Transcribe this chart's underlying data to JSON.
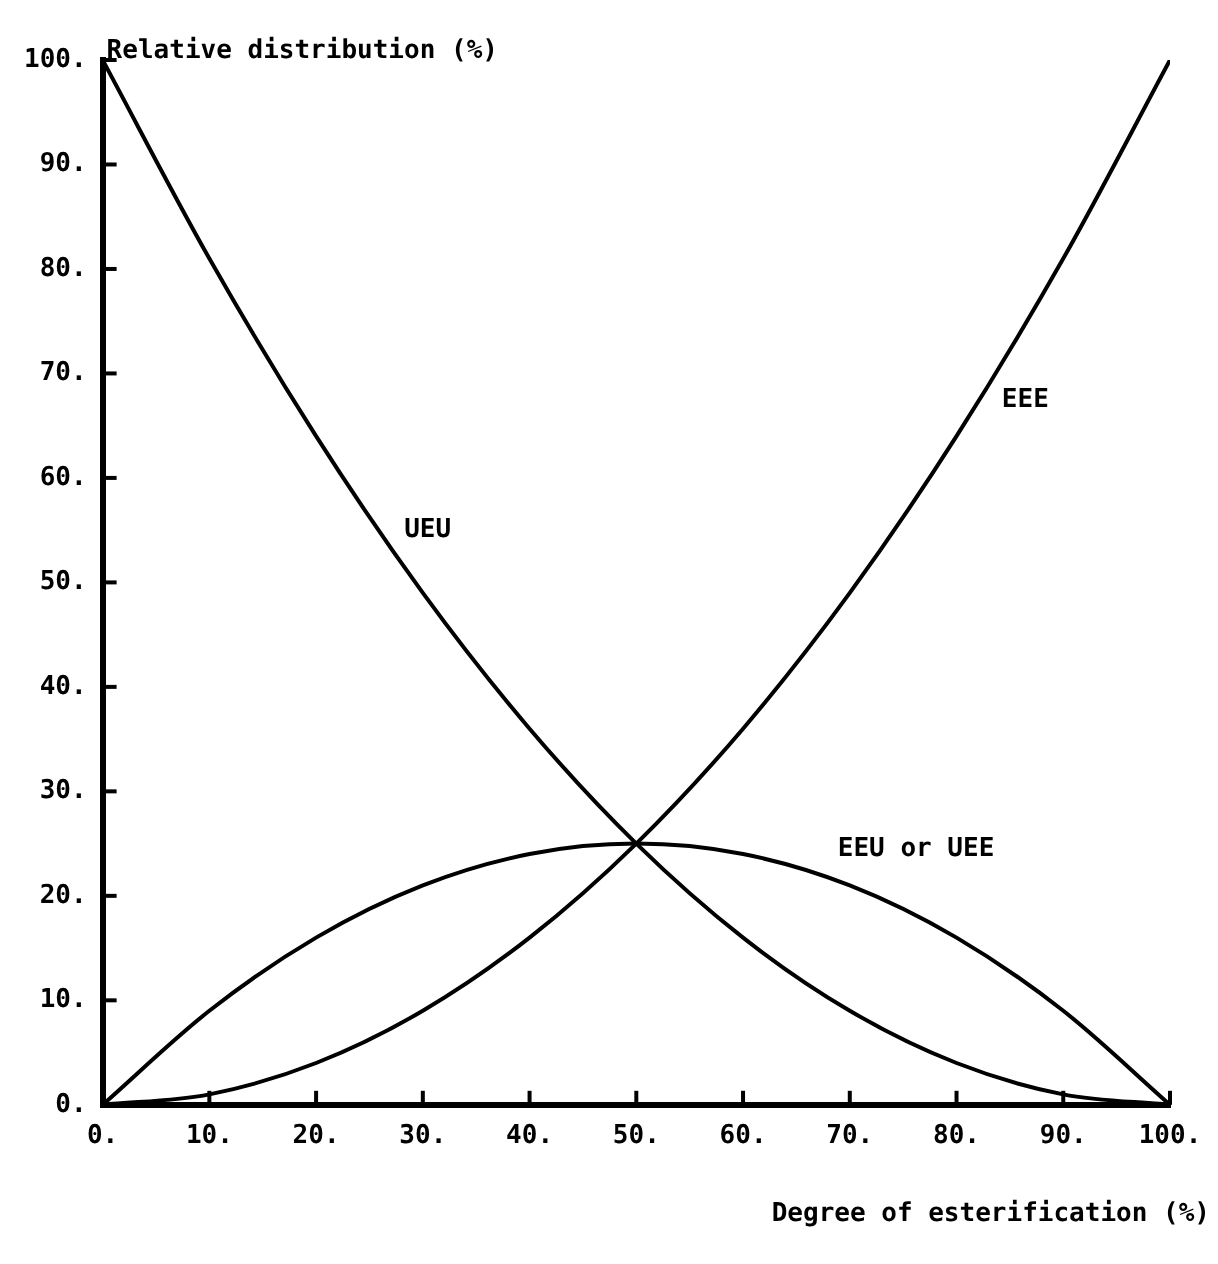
{
  "chart_data": {
    "type": "line",
    "xlabel": "Degree of esterification (%)",
    "ylabel": "Relative distribution (%)",
    "x": [
      0,
      10,
      20,
      30,
      40,
      50,
      60,
      70,
      80,
      90,
      100
    ],
    "series": [
      {
        "name": "UEU",
        "color": "#000000",
        "values": [
          100,
          81,
          64,
          49,
          36,
          25,
          16,
          9,
          4,
          1,
          0
        ]
      },
      {
        "name": "EEE",
        "color": "#000000",
        "values": [
          0,
          1,
          4,
          9,
          16,
          25,
          36,
          49,
          64,
          81,
          100
        ]
      },
      {
        "name": "EEU or UEE",
        "color": "#000000",
        "values": [
          0,
          9,
          16,
          21,
          24,
          25,
          24,
          21,
          16,
          9,
          0
        ]
      }
    ],
    "xlim": [
      0,
      100
    ],
    "ylim": [
      0,
      100
    ],
    "xticks": [
      {
        "value": 0,
        "label": "0."
      },
      {
        "value": 10,
        "label": "10."
      },
      {
        "value": 20,
        "label": "20."
      },
      {
        "value": 30,
        "label": "30."
      },
      {
        "value": 40,
        "label": "40."
      },
      {
        "value": 50,
        "label": "50."
      },
      {
        "value": 60,
        "label": "60."
      },
      {
        "value": 70,
        "label": "70."
      },
      {
        "value": 80,
        "label": "80."
      },
      {
        "value": 90,
        "label": "90."
      },
      {
        "value": 100,
        "label": "100."
      }
    ],
    "yticks": [
      {
        "value": 0,
        "label": "0."
      },
      {
        "value": 10,
        "label": "10."
      },
      {
        "value": 20,
        "label": "20."
      },
      {
        "value": 30,
        "label": "30."
      },
      {
        "value": 40,
        "label": "40."
      },
      {
        "value": 50,
        "label": "50."
      },
      {
        "value": 60,
        "label": "60."
      },
      {
        "value": 70,
        "label": "70."
      },
      {
        "value": 80,
        "label": "80."
      },
      {
        "value": 90,
        "label": "90."
      },
      {
        "value": 100,
        "label": "100."
      }
    ],
    "grid": false,
    "legend": false,
    "marker": "none",
    "line_style": "solid"
  }
}
